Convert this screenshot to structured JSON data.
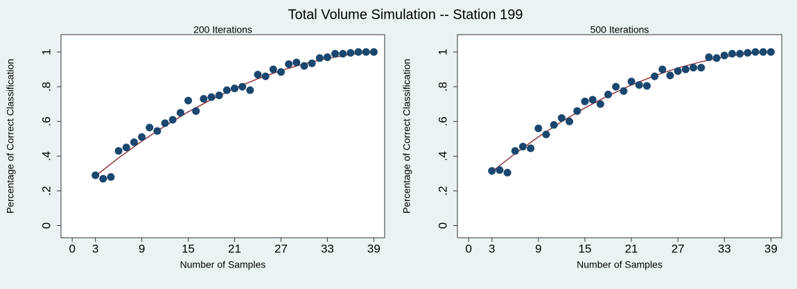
{
  "title": "Total Volume Simulation -- Station 199",
  "chart_data": [
    {
      "type": "scatter",
      "title": "200 Iterations",
      "xlabel": "Number of Samples",
      "ylabel": "Percentage of Correct Classification",
      "xlim": [
        -1.45,
        40.4
      ],
      "ylim": [
        -0.07,
        1.1
      ],
      "xticks": [
        0,
        3,
        9,
        15,
        21,
        27,
        33,
        39
      ],
      "yticks": [
        0,
        {
          "value": 0.2,
          "label": ".2"
        },
        {
          "value": 0.4,
          "label": ".4"
        },
        {
          "value": 0.6,
          "label": ".6"
        },
        {
          "value": 0.8,
          "label": ".8"
        },
        1
      ],
      "series": [
        {
          "type": "scatter",
          "color": "#1a476f",
          "x": [
            3,
            4,
            5,
            6,
            7,
            8,
            9,
            10,
            11,
            12,
            13,
            14,
            15,
            16,
            17,
            18,
            19,
            20,
            21,
            22,
            23,
            24,
            25,
            26,
            27,
            28,
            29,
            30,
            31,
            32,
            33,
            34,
            35,
            36,
            37,
            38,
            39
          ],
          "values": [
            0.29,
            0.27,
            0.28,
            0.43,
            0.45,
            0.48,
            0.51,
            0.565,
            0.545,
            0.59,
            0.61,
            0.65,
            0.72,
            0.66,
            0.73,
            0.74,
            0.75,
            0.78,
            0.79,
            0.8,
            0.78,
            0.87,
            0.86,
            0.9,
            0.885,
            0.93,
            0.94,
            0.92,
            0.935,
            0.965,
            0.97,
            0.99,
            0.99,
            0.995,
            1,
            1,
            1
          ]
        },
        {
          "type": "line",
          "color": "#90353b",
          "x": [
            3,
            6,
            9,
            12,
            15,
            18,
            21,
            24,
            27,
            30,
            33,
            36,
            39
          ],
          "values": [
            0.285,
            0.39,
            0.486,
            0.574,
            0.655,
            0.726,
            0.79,
            0.846,
            0.893,
            0.932,
            0.963,
            0.986,
            1.0
          ]
        }
      ]
    },
    {
      "type": "scatter",
      "title": "500 Iterations",
      "xlabel": "Number of Samples",
      "ylabel": "Percentage of Correct Classification",
      "xlim": [
        -1.45,
        40.4
      ],
      "ylim": [
        -0.07,
        1.1
      ],
      "xticks": [
        0,
        3,
        9,
        15,
        21,
        27,
        33,
        39
      ],
      "yticks": [
        0,
        {
          "value": 0.2,
          "label": ".2"
        },
        {
          "value": 0.4,
          "label": ".4"
        },
        {
          "value": 0.6,
          "label": ".6"
        },
        {
          "value": 0.8,
          "label": ".8"
        },
        1
      ],
      "series": [
        {
          "type": "scatter",
          "color": "#1a476f",
          "x": [
            3,
            4,
            5,
            6,
            7,
            8,
            9,
            10,
            11,
            12,
            13,
            14,
            15,
            16,
            17,
            18,
            19,
            20,
            21,
            22,
            23,
            24,
            25,
            26,
            27,
            28,
            29,
            30,
            31,
            32,
            33,
            34,
            35,
            36,
            37,
            38,
            39
          ],
          "values": [
            0.315,
            0.32,
            0.305,
            0.43,
            0.455,
            0.445,
            0.56,
            0.525,
            0.58,
            0.62,
            0.6,
            0.66,
            0.715,
            0.725,
            0.7,
            0.755,
            0.8,
            0.775,
            0.83,
            0.81,
            0.805,
            0.86,
            0.9,
            0.865,
            0.89,
            0.9,
            0.91,
            0.91,
            0.97,
            0.965,
            0.98,
            0.99,
            0.99,
            0.995,
            1,
            1,
            1
          ]
        },
        {
          "type": "line",
          "color": "#90353b",
          "x": [
            3,
            6,
            9,
            12,
            15,
            18,
            21,
            24,
            27,
            30,
            33,
            36,
            39
          ],
          "values": [
            0.31,
            0.415,
            0.511,
            0.599,
            0.678,
            0.748,
            0.81,
            0.863,
            0.908,
            0.944,
            0.972,
            0.99,
            1.0
          ]
        }
      ]
    }
  ]
}
